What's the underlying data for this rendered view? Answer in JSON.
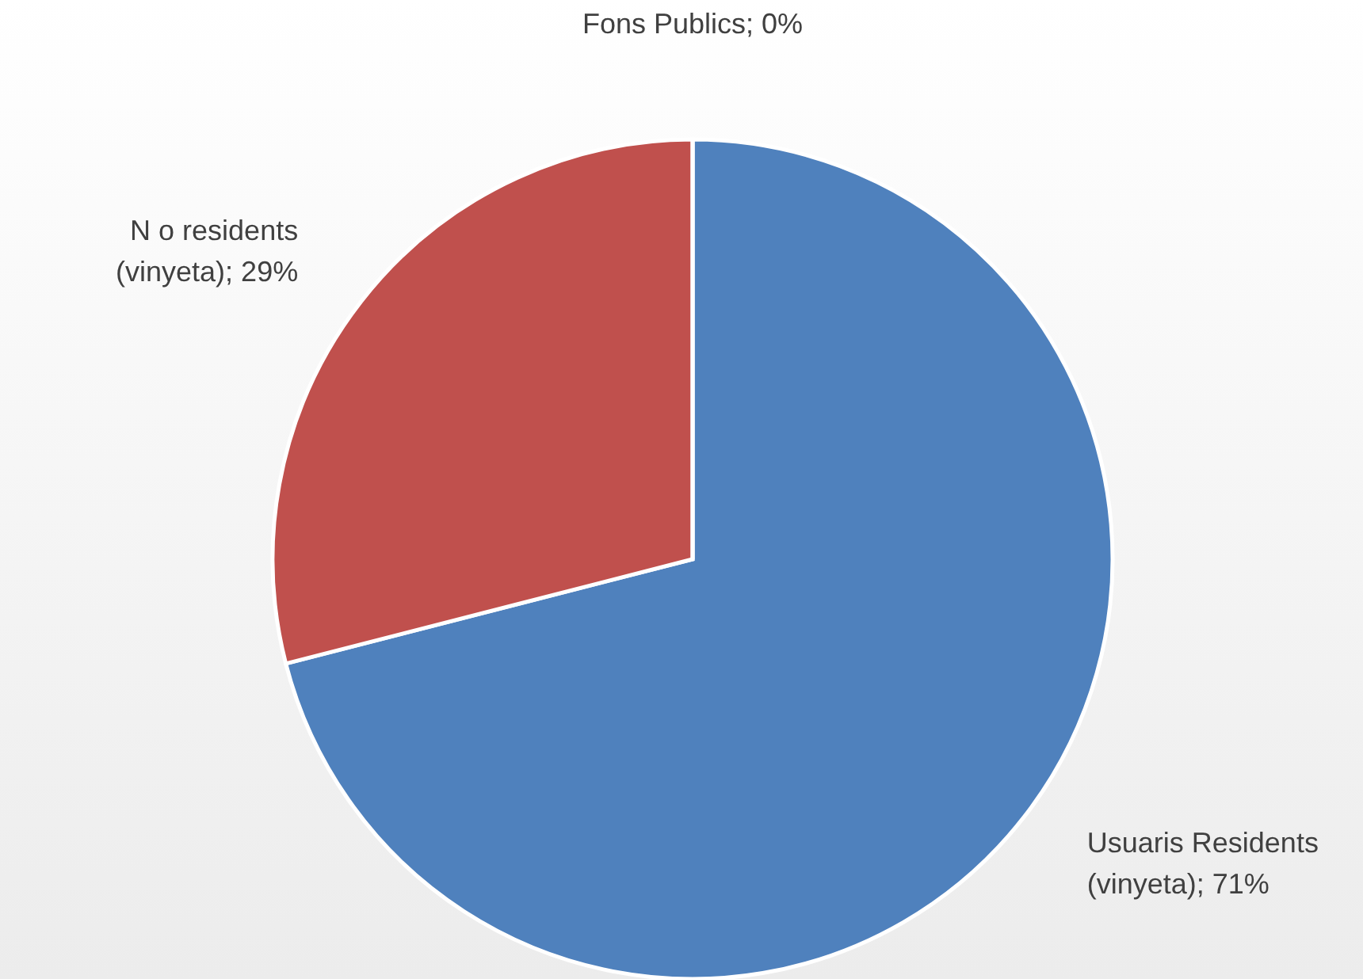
{
  "chart_data": {
    "type": "pie",
    "categories": [
      "Usuaris Residents (vinyeta)",
      "N o residents (vinyeta)",
      "Fons Publics"
    ],
    "values": [
      71,
      29,
      0
    ],
    "colors": [
      "#4f81bd",
      "#c0504d",
      "#9bbb59"
    ],
    "value_labels": [
      "; 71%",
      "; 29%",
      "; 0%"
    ]
  }
}
